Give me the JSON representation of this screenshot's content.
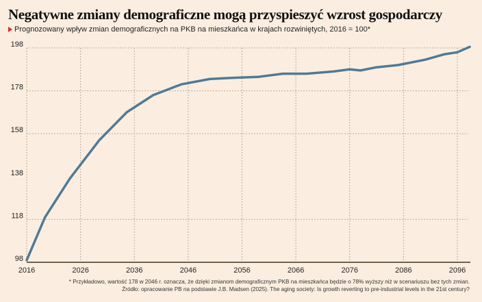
{
  "header": {
    "title": "Negatywne zmiany demograficzne mogą przyspieszyć wzrost gospodarczy",
    "subtitle": "Prognozowany wpływ zmian demograficznych na PKB na mieszkańca w krajach rozwiniętych, 2016 = 100*"
  },
  "footnotes": {
    "note": "* Przykładowo, wartość 178 w 2046 r. oznacza, że dzięki zmianom demograficznym PKB na mieszkańca będzie o 78% wyższy niż w scenariuszu bez tych zmian.",
    "source": "Źródło: opracowanie PB na podstawie J.B. Madsen (2025). The aging society: Is growth reverting to pre-industrial levels in the 21st century?"
  },
  "colors": {
    "background": "#fbeee0",
    "line": "#4f7a96",
    "accent": "#e3262b",
    "grid": "#b9aa9c",
    "axis": "#6b6550"
  },
  "chart_data": {
    "type": "line",
    "title": "Negatywne zmiany demograficzne mogą przyspieszyć wzrost gospodarczy",
    "subtitle": "Prognozowany wpływ zmian demograficznych na PKB na mieszkańca w krajach rozwiniętych, 2016 = 100*",
    "xlabel": "",
    "ylabel": "",
    "xlim": [
      2016,
      2098.5
    ],
    "ylim": [
      98,
      198
    ],
    "x_ticks": [
      "2016",
      "2026",
      "2036",
      "2046",
      "2056",
      "2066",
      "2076",
      "2086",
      "2096"
    ],
    "y_ticks": [
      "98",
      "118",
      "138",
      "158",
      "178",
      "198"
    ],
    "grid": true,
    "legend": "none",
    "series": [
      {
        "name": "PKB na mieszkańca (2016 = 100)",
        "x": [
          2016,
          2019.4,
          2024,
          2029.5,
          2034.6,
          2039.5,
          2044.7,
          2050,
          2054,
          2059,
          2063.6,
          2068,
          2073,
          2076,
          2078,
          2081,
          2085,
          2090,
          2093.5,
          2096,
          2098.3
        ],
        "values": [
          99,
          119,
          137,
          155,
          168,
          176,
          181,
          183.5,
          184,
          184.5,
          186,
          186,
          187,
          188,
          187.5,
          189,
          190,
          192.5,
          195,
          196,
          198.5
        ]
      }
    ]
  }
}
